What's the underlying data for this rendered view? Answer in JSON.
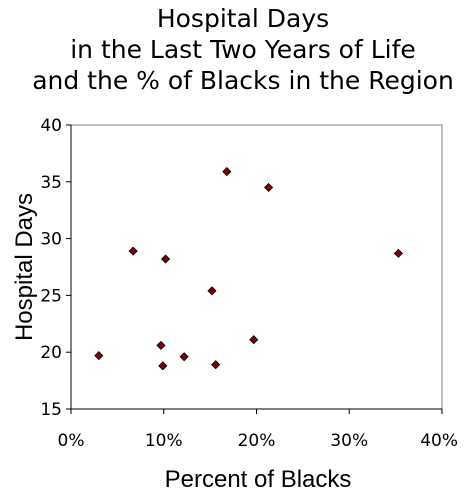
{
  "chart_data": {
    "type": "scatter",
    "title_lines": [
      "Hospital Days",
      "in the Last Two Years of Life",
      "and the % of Blacks in the Region"
    ],
    "xlabel": "Percent of Blacks",
    "ylabel": "Hospital Days",
    "xlim": [
      0,
      0.4
    ],
    "ylim": [
      15,
      40
    ],
    "x_ticks": [
      0,
      0.1,
      0.2,
      0.3,
      0.4
    ],
    "x_tick_labels": [
      "0%",
      "10%",
      "20%",
      "30%",
      "40%"
    ],
    "y_ticks": [
      15,
      20,
      25,
      30,
      35,
      40
    ],
    "y_tick_labels": [
      "15",
      "20",
      "25",
      "30",
      "35",
      "40"
    ],
    "grid": false,
    "marker_color": "#7a0010",
    "marker_shape": "diamond",
    "points": [
      {
        "x": 0.03,
        "y": 19.7
      },
      {
        "x": 0.067,
        "y": 28.9
      },
      {
        "x": 0.097,
        "y": 20.6
      },
      {
        "x": 0.099,
        "y": 18.8
      },
      {
        "x": 0.102,
        "y": 28.2
      },
      {
        "x": 0.122,
        "y": 19.6
      },
      {
        "x": 0.152,
        "y": 25.4
      },
      {
        "x": 0.156,
        "y": 18.9
      },
      {
        "x": 0.168,
        "y": 35.9
      },
      {
        "x": 0.197,
        "y": 21.1
      },
      {
        "x": 0.213,
        "y": 34.5
      },
      {
        "x": 0.353,
        "y": 28.7
      }
    ]
  }
}
